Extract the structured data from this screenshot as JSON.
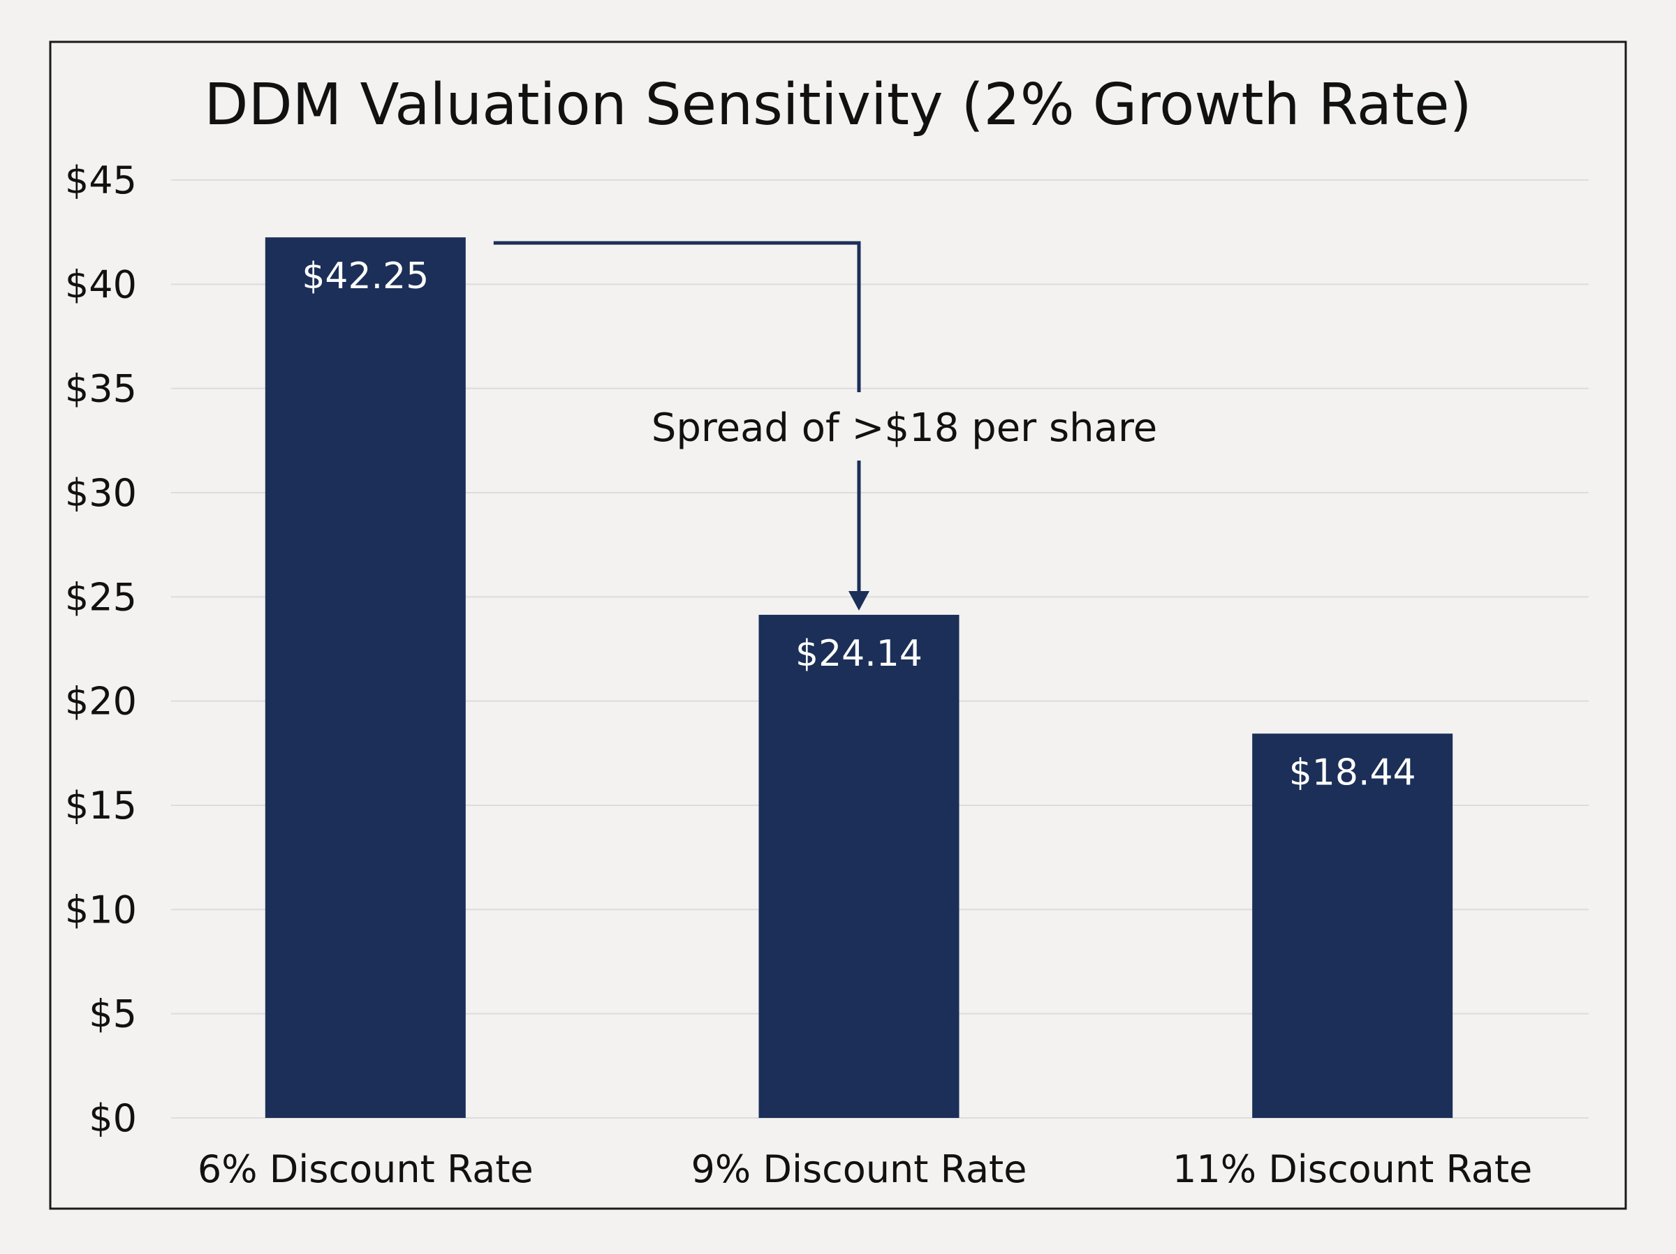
{
  "chart_data": {
    "type": "bar",
    "title": "DDM Valuation Sensitivity (2% Growth Rate)",
    "categories": [
      "6% Discount Rate",
      "9% Discount Rate",
      "11% Discount Rate"
    ],
    "values": [
      42.25,
      24.14,
      18.44
    ],
    "value_labels": [
      "$42.25",
      "$24.14",
      "$18.44"
    ],
    "ylim": [
      0,
      45
    ],
    "yticks": [
      0,
      5,
      10,
      15,
      20,
      25,
      30,
      35,
      40,
      45
    ],
    "ytick_labels": [
      "$0",
      "$5",
      "$10",
      "$15",
      "$20",
      "$25",
      "$30",
      "$35",
      "$40",
      "$45"
    ],
    "grid": true,
    "xlabel": "",
    "ylabel": "",
    "annotation": {
      "text": "Spread of >$18 per share",
      "from_category": 0,
      "to_category": 1
    },
    "colors": {
      "bar": "#1b2f58",
      "grid": "#dcdcdc",
      "frame": "#1a1a1a",
      "background": "#f3f2f1"
    }
  }
}
